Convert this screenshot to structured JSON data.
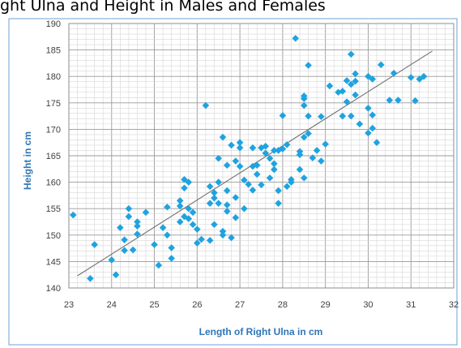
{
  "chart_data": {
    "type": "scatter",
    "title": "ght Ulna and Height in Males and Females",
    "xlabel": "Length of Right Ulna in cm",
    "ylabel": "Height in cm",
    "xlim": [
      23,
      32
    ],
    "ylim": [
      140,
      190
    ],
    "x_ticks": [
      "23",
      "24",
      "25",
      "26",
      "27",
      "28",
      "29",
      "30",
      "31",
      "32"
    ],
    "y_ticks": [
      "140",
      "145",
      "150",
      "155",
      "160",
      "165",
      "170",
      "175",
      "180",
      "185",
      "190"
    ],
    "grid": true,
    "marker_color": "#1fa3e0",
    "trendline_color": "#707070",
    "trendline": [
      {
        "x": 23.2,
        "y": 142.3
      },
      {
        "x": 31.5,
        "y": 184.8
      }
    ],
    "series": [
      {
        "points": [
          {
            "x": 23.1,
            "y": 153.8
          },
          {
            "x": 23.5,
            "y": 141.8
          },
          {
            "x": 23.6,
            "y": 148.2
          },
          {
            "x": 24.0,
            "y": 145.3
          },
          {
            "x": 24.1,
            "y": 142.5
          },
          {
            "x": 24.2,
            "y": 151.4
          },
          {
            "x": 24.3,
            "y": 149.1
          },
          {
            "x": 24.3,
            "y": 147.1
          },
          {
            "x": 24.4,
            "y": 153.5
          },
          {
            "x": 24.4,
            "y": 155.0
          },
          {
            "x": 24.5,
            "y": 147.2
          },
          {
            "x": 24.6,
            "y": 150.2
          },
          {
            "x": 24.6,
            "y": 151.7
          },
          {
            "x": 24.6,
            "y": 152.5
          },
          {
            "x": 24.8,
            "y": 154.3
          },
          {
            "x": 25.0,
            "y": 148.2
          },
          {
            "x": 25.1,
            "y": 144.3
          },
          {
            "x": 25.2,
            "y": 151.4
          },
          {
            "x": 25.3,
            "y": 155.3
          },
          {
            "x": 25.3,
            "y": 150.0
          },
          {
            "x": 25.4,
            "y": 147.6
          },
          {
            "x": 25.4,
            "y": 145.6
          },
          {
            "x": 25.6,
            "y": 156.5
          },
          {
            "x": 25.6,
            "y": 152.5
          },
          {
            "x": 25.6,
            "y": 155.5
          },
          {
            "x": 25.7,
            "y": 160.5
          },
          {
            "x": 25.7,
            "y": 153.5
          },
          {
            "x": 25.7,
            "y": 158.9
          },
          {
            "x": 25.8,
            "y": 153.1
          },
          {
            "x": 25.8,
            "y": 155.0
          },
          {
            "x": 25.8,
            "y": 160.0
          },
          {
            "x": 25.9,
            "y": 152.0
          },
          {
            "x": 25.9,
            "y": 154.3
          },
          {
            "x": 26.0,
            "y": 148.5
          },
          {
            "x": 26.0,
            "y": 151.1
          },
          {
            "x": 26.1,
            "y": 149.2
          },
          {
            "x": 26.2,
            "y": 174.5
          },
          {
            "x": 26.3,
            "y": 149.0
          },
          {
            "x": 26.3,
            "y": 156.0
          },
          {
            "x": 26.3,
            "y": 159.2
          },
          {
            "x": 26.4,
            "y": 158.0
          },
          {
            "x": 26.4,
            "y": 157.0
          },
          {
            "x": 26.4,
            "y": 152.0
          },
          {
            "x": 26.5,
            "y": 164.5
          },
          {
            "x": 26.5,
            "y": 156.0
          },
          {
            "x": 26.5,
            "y": 160.0
          },
          {
            "x": 26.6,
            "y": 168.5
          },
          {
            "x": 26.6,
            "y": 150.7
          },
          {
            "x": 26.6,
            "y": 150.0
          },
          {
            "x": 26.7,
            "y": 154.5
          },
          {
            "x": 26.7,
            "y": 155.7
          },
          {
            "x": 26.7,
            "y": 158.4
          },
          {
            "x": 26.7,
            "y": 163.2
          },
          {
            "x": 26.8,
            "y": 167.0
          },
          {
            "x": 26.8,
            "y": 149.5
          },
          {
            "x": 26.9,
            "y": 153.3
          },
          {
            "x": 26.9,
            "y": 157.1
          },
          {
            "x": 26.9,
            "y": 164.0
          },
          {
            "x": 27.0,
            "y": 166.5
          },
          {
            "x": 27.0,
            "y": 167.5
          },
          {
            "x": 27.0,
            "y": 163.0
          },
          {
            "x": 27.1,
            "y": 160.4
          },
          {
            "x": 27.1,
            "y": 155.0
          },
          {
            "x": 27.2,
            "y": 159.6
          },
          {
            "x": 27.3,
            "y": 158.5
          },
          {
            "x": 27.3,
            "y": 163.0
          },
          {
            "x": 27.3,
            "y": 166.5
          },
          {
            "x": 27.4,
            "y": 161.5
          },
          {
            "x": 27.4,
            "y": 163.2
          },
          {
            "x": 27.5,
            "y": 166.5
          },
          {
            "x": 27.5,
            "y": 159.5
          },
          {
            "x": 27.6,
            "y": 165.5
          },
          {
            "x": 27.6,
            "y": 166.8
          },
          {
            "x": 27.7,
            "y": 164.5
          },
          {
            "x": 27.7,
            "y": 160.8
          },
          {
            "x": 27.8,
            "y": 166.0
          },
          {
            "x": 27.8,
            "y": 162.4
          },
          {
            "x": 27.8,
            "y": 163.5
          },
          {
            "x": 27.9,
            "y": 156.0
          },
          {
            "x": 27.9,
            "y": 158.4
          },
          {
            "x": 27.9,
            "y": 166.0
          },
          {
            "x": 28.0,
            "y": 172.6
          },
          {
            "x": 28.0,
            "y": 166.3
          },
          {
            "x": 28.1,
            "y": 167.1
          },
          {
            "x": 28.1,
            "y": 159.2
          },
          {
            "x": 28.2,
            "y": 160.0
          },
          {
            "x": 28.2,
            "y": 160.5
          },
          {
            "x": 28.3,
            "y": 187.2
          },
          {
            "x": 28.4,
            "y": 162.4
          },
          {
            "x": 28.4,
            "y": 165.2
          },
          {
            "x": 28.4,
            "y": 165.8
          },
          {
            "x": 28.5,
            "y": 174.5
          },
          {
            "x": 28.5,
            "y": 175.8
          },
          {
            "x": 28.5,
            "y": 176.3
          },
          {
            "x": 28.5,
            "y": 168.5
          },
          {
            "x": 28.5,
            "y": 160.8
          },
          {
            "x": 28.6,
            "y": 172.5
          },
          {
            "x": 28.6,
            "y": 169.2
          },
          {
            "x": 28.6,
            "y": 182.1
          },
          {
            "x": 28.7,
            "y": 164.6
          },
          {
            "x": 28.8,
            "y": 166.0
          },
          {
            "x": 28.9,
            "y": 164.0
          },
          {
            "x": 28.9,
            "y": 172.4
          },
          {
            "x": 29.0,
            "y": 167.2
          },
          {
            "x": 29.1,
            "y": 178.2
          },
          {
            "x": 29.3,
            "y": 177.0
          },
          {
            "x": 29.4,
            "y": 177.2
          },
          {
            "x": 29.4,
            "y": 172.5
          },
          {
            "x": 29.5,
            "y": 179.2
          },
          {
            "x": 29.5,
            "y": 175.2
          },
          {
            "x": 29.6,
            "y": 184.2
          },
          {
            "x": 29.6,
            "y": 178.5
          },
          {
            "x": 29.6,
            "y": 172.5
          },
          {
            "x": 29.7,
            "y": 180.5
          },
          {
            "x": 29.7,
            "y": 176.5
          },
          {
            "x": 29.7,
            "y": 179.1
          },
          {
            "x": 29.8,
            "y": 171.0
          },
          {
            "x": 30.0,
            "y": 180.0
          },
          {
            "x": 30.0,
            "y": 174.0
          },
          {
            "x": 30.0,
            "y": 169.3
          },
          {
            "x": 30.1,
            "y": 179.5
          },
          {
            "x": 30.1,
            "y": 172.7
          },
          {
            "x": 30.1,
            "y": 170.2
          },
          {
            "x": 30.2,
            "y": 167.5
          },
          {
            "x": 30.3,
            "y": 182.2
          },
          {
            "x": 30.5,
            "y": 175.5
          },
          {
            "x": 30.6,
            "y": 180.6
          },
          {
            "x": 30.7,
            "y": 175.5
          },
          {
            "x": 31.0,
            "y": 179.8
          },
          {
            "x": 31.1,
            "y": 175.4
          },
          {
            "x": 31.2,
            "y": 179.5
          },
          {
            "x": 31.3,
            "y": 180.0
          }
        ]
      }
    ]
  }
}
